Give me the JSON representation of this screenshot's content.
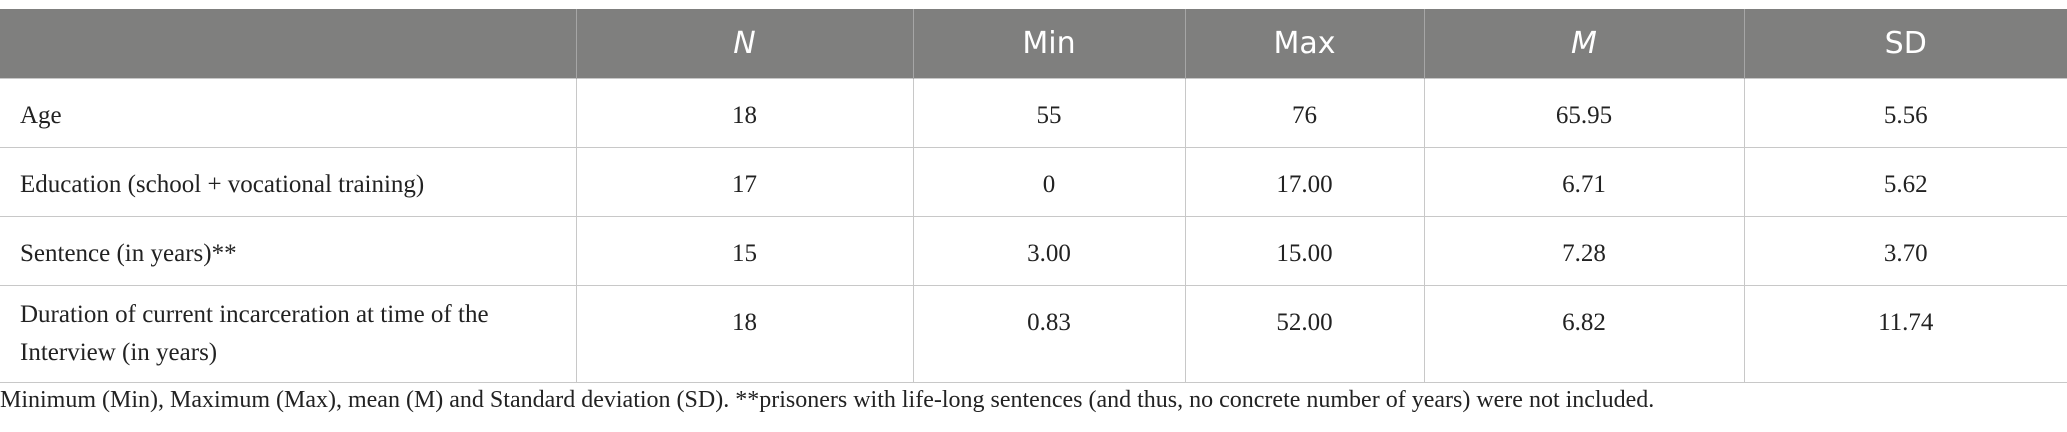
{
  "table": {
    "columns": [
      "N",
      "Min",
      "Max",
      "M",
      "SD"
    ],
    "rows": [
      [
        "Age",
        "18",
        "55",
        "76",
        "65.95",
        "5.56"
      ],
      [
        "Education (school + vocational training)",
        "17",
        "0",
        "17.00",
        "6.71",
        "5.62"
      ],
      [
        "Sentence (in years)**",
        "15",
        "3.00",
        "15.00",
        "7.28",
        "3.70"
      ],
      [
        "Duration of current incarceration at time of the Interview (in years)",
        "18",
        "0.83",
        "52.00",
        "6.82",
        "11.74"
      ]
    ]
  },
  "footnote": "Minimum (Min), Maximum (Max), mean (M) and Standard deviation (SD). **prisoners with life-long sentences (and thus, no concrete number of years) were not included."
}
